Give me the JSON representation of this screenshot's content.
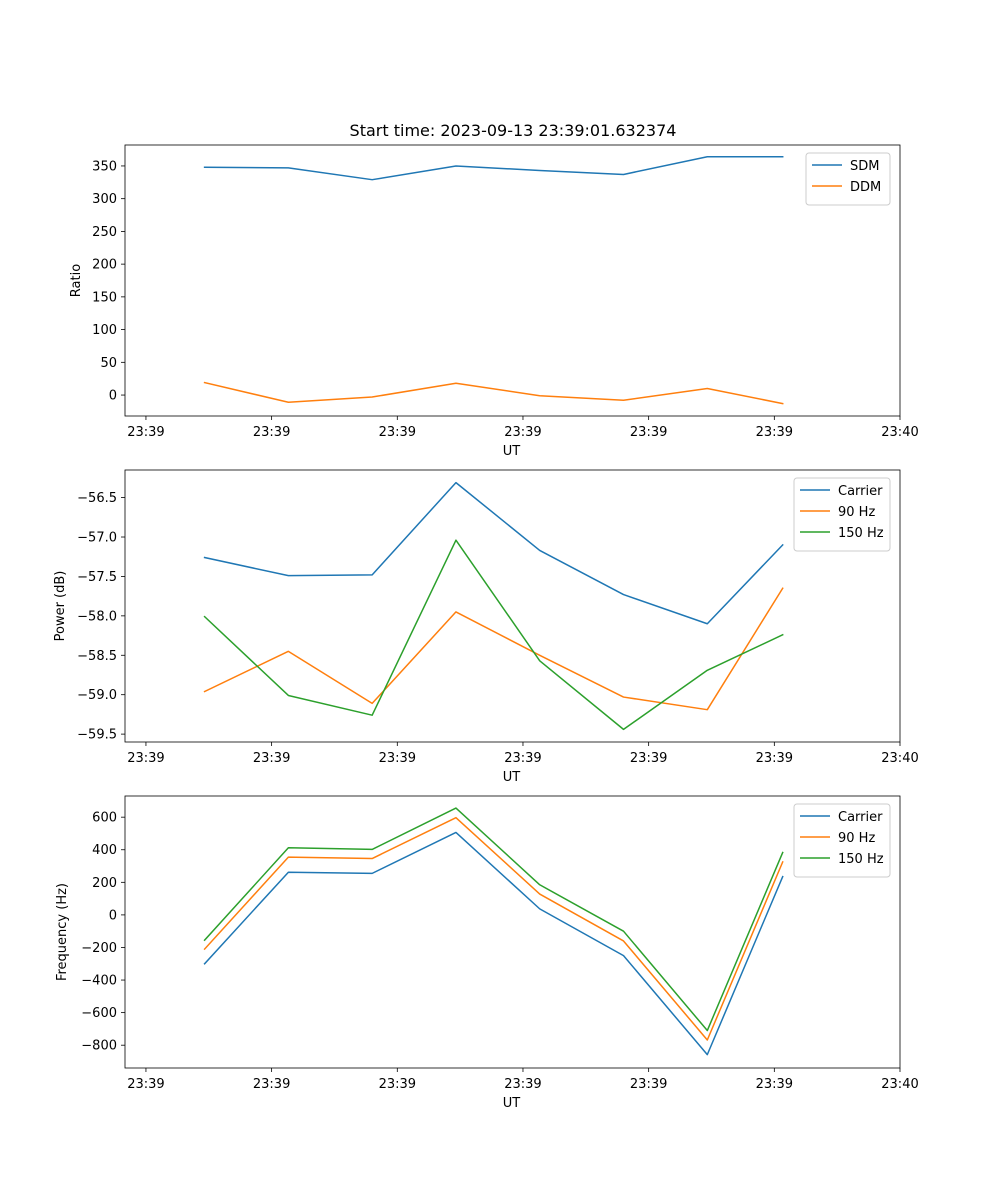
{
  "figure_title": "Start time: 2023-09-13 23:39:01.632374",
  "chart_data": [
    {
      "type": "line",
      "name": "ratio",
      "title": "Start time: 2023-09-13 23:39:01.632374",
      "xlabel": "UT",
      "ylabel": "Ratio",
      "xlim": [
        -0.25,
        9.0
      ],
      "ylim": [
        -32,
        382
      ],
      "x_ticks": [
        0,
        1.5,
        3,
        4.5,
        6,
        7.5,
        9
      ],
      "x_tick_labels": [
        "23:39",
        "23:39",
        "23:39",
        "23:39",
        "23:39",
        "23:39",
        "23:40"
      ],
      "y_ticks": [
        0,
        50,
        100,
        150,
        200,
        250,
        300,
        350
      ],
      "y_tick_labels": [
        "0",
        "50",
        "100",
        "150",
        "200",
        "250",
        "300",
        "350"
      ],
      "x": [
        0.7,
        1.7,
        2.7,
        3.7,
        4.7,
        5.7,
        6.7,
        7.6
      ],
      "series": [
        {
          "name": "SDM",
          "color": "#1f77b4",
          "values": [
            348,
            347,
            329,
            350,
            343,
            337,
            364,
            364
          ]
        },
        {
          "name": "DDM",
          "color": "#ff7f0e",
          "values": [
            19,
            -11,
            -3,
            18,
            -1,
            -8,
            10,
            -13
          ]
        }
      ],
      "legend": "top-right",
      "grid": false
    },
    {
      "type": "line",
      "name": "power",
      "title": "",
      "xlabel": "UT",
      "ylabel": "Power (dB)",
      "xlim": [
        -0.25,
        9.0
      ],
      "ylim": [
        -59.6,
        -56.15
      ],
      "x_ticks": [
        0,
        1.5,
        3,
        4.5,
        6,
        7.5,
        9
      ],
      "x_tick_labels": [
        "23:39",
        "23:39",
        "23:39",
        "23:39",
        "23:39",
        "23:39",
        "23:40"
      ],
      "y_ticks": [
        -59.5,
        -59.0,
        -58.5,
        -58.0,
        -57.5,
        -57.0,
        -56.5
      ],
      "y_tick_labels": [
        "−59.5",
        "−59.0",
        "−58.5",
        "−58.0",
        "−57.5",
        "−57.0",
        "−56.5"
      ],
      "x": [
        0.7,
        1.7,
        2.7,
        3.7,
        4.7,
        5.7,
        6.7,
        7.6
      ],
      "series": [
        {
          "name": "Carrier",
          "color": "#1f77b4",
          "values": [
            -57.26,
            -57.49,
            -57.48,
            -56.31,
            -57.17,
            -57.73,
            -58.1,
            -57.1
          ]
        },
        {
          "name": "90 Hz",
          "color": "#ff7f0e",
          "values": [
            -58.96,
            -58.45,
            -59.11,
            -57.95,
            -58.5,
            -59.03,
            -59.19,
            -57.65
          ]
        },
        {
          "name": "150 Hz",
          "color": "#2ca02c",
          "values": [
            -58.01,
            -59.01,
            -59.26,
            -57.04,
            -58.57,
            -59.44,
            -58.69,
            -58.24
          ]
        }
      ],
      "legend": "top-right",
      "grid": false
    },
    {
      "type": "line",
      "name": "frequency",
      "title": "",
      "xlabel": "UT",
      "ylabel": "Frequency (Hz)",
      "xlim": [
        -0.25,
        9.0
      ],
      "ylim": [
        -940,
        730
      ],
      "x_ticks": [
        0,
        1.5,
        3,
        4.5,
        6,
        7.5,
        9
      ],
      "x_tick_labels": [
        "23:39",
        "23:39",
        "23:39",
        "23:39",
        "23:39",
        "23:39",
        "23:40"
      ],
      "y_ticks": [
        -800,
        -600,
        -400,
        -200,
        0,
        200,
        400,
        600
      ],
      "y_tick_labels": [
        "−800",
        "−600",
        "−400",
        "−200",
        "0",
        "200",
        "400",
        "600"
      ],
      "x": [
        0.7,
        1.7,
        2.7,
        3.7,
        4.7,
        5.7,
        6.7,
        7.6
      ],
      "series": [
        {
          "name": "Carrier",
          "color": "#1f77b4",
          "values": [
            -300,
            262,
            255,
            506,
            37,
            -250,
            -858,
            235
          ]
        },
        {
          "name": "90 Hz",
          "color": "#ff7f0e",
          "values": [
            -210,
            355,
            346,
            597,
            128,
            -160,
            -768,
            325
          ]
        },
        {
          "name": "150 Hz",
          "color": "#2ca02c",
          "values": [
            -155,
            412,
            402,
            656,
            185,
            -100,
            -710,
            383
          ]
        }
      ],
      "legend": "top-right",
      "grid": false
    }
  ]
}
